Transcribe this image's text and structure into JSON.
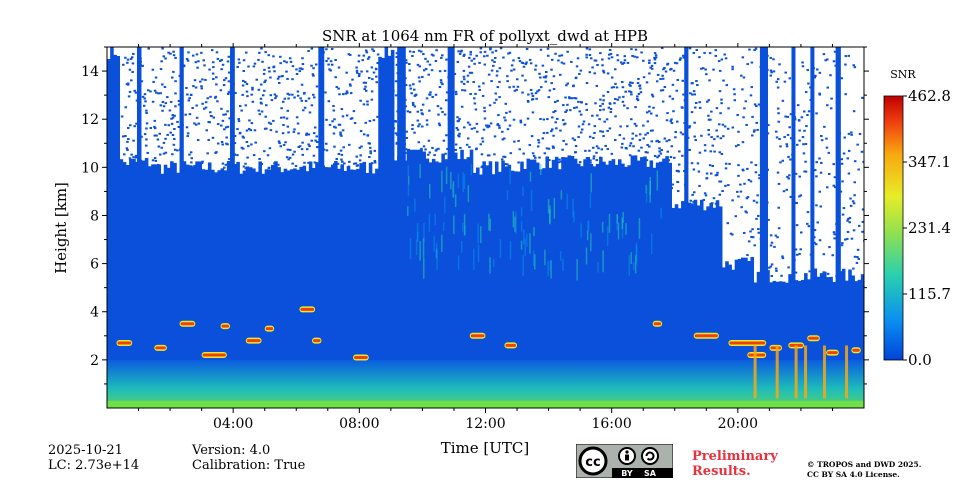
{
  "chart_data": {
    "type": "heatmap",
    "title": "SNR at 1064 nm FR of pollyxt_dwd at HPB",
    "xlabel": "Time [UTC]",
    "ylabel": "Height [km]",
    "xlim": [
      0,
      24
    ],
    "ylim": [
      0.0,
      15.0
    ],
    "x_ticks": [
      {
        "value": 4,
        "label": "04:00"
      },
      {
        "value": 8,
        "label": "08:00"
      },
      {
        "value": 12,
        "label": "12:00"
      },
      {
        "value": 16,
        "label": "16:00"
      },
      {
        "value": 20,
        "label": "20:00"
      }
    ],
    "y_ticks": [
      2,
      4,
      6,
      8,
      10,
      12,
      14
    ],
    "colorbar": {
      "label": "SNR",
      "min": 0.0,
      "max": 462.8,
      "ticks": [
        "462.8",
        "347.1",
        "231.4",
        "115.7",
        "0.0"
      ],
      "colormap": [
        "#0044d8",
        "#0a8ff0",
        "#28d0b0",
        "#90e050",
        "#e8ec28",
        "#f8a810",
        "#f04010",
        "#c00000"
      ]
    },
    "features": {
      "aerosol_layer_km": [
        0,
        2
      ],
      "cirrus_band_km": [
        8,
        10.5
      ],
      "cloud_layers_km": [
        2,
        4
      ],
      "noise_above_km": 10
    }
  },
  "footer": {
    "date": "2025-10-21",
    "lc": "LC: 2.73e+14",
    "version": "Version: 4.0",
    "calibration": "Calibration: True",
    "preliminary_line1": "Preliminary",
    "preliminary_line2": "Results.",
    "copyright_line1": "© TROPOS and DWD 2025.",
    "copyright_line2": "CC BY SA 4.0 License.",
    "license_badge": {
      "by": "BY",
      "sa": "SA"
    }
  }
}
